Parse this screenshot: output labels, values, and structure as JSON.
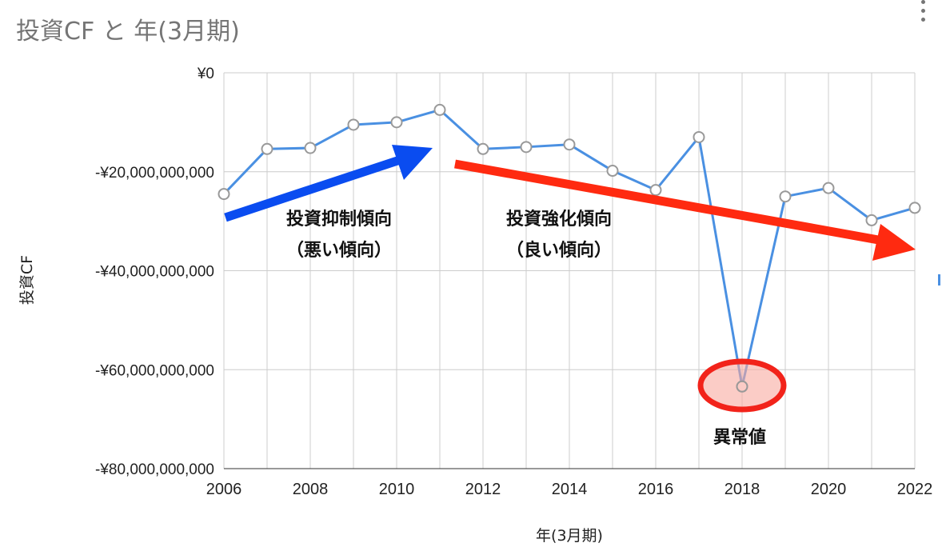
{
  "chart_data": {
    "type": "line",
    "title": "投資CF と 年(3月期)",
    "xlabel": "年(3月期)",
    "ylabel": "投資CF",
    "xlim": [
      2006,
      2022
    ],
    "ylim": [
      -80000000000,
      0
    ],
    "x_ticks": [
      "2006",
      "2008",
      "2010",
      "2012",
      "2014",
      "2016",
      "2018",
      "2020",
      "2022"
    ],
    "y_ticks": [
      "¥0",
      "-¥20,000,000,000",
      "-¥40,000,000,000",
      "-¥60,000,000,000",
      "-¥80,000,000,000"
    ],
    "grid": true,
    "series": [
      {
        "color": "#4a90e2",
        "points": [
          {
            "x": 2006,
            "y": -24500000000
          },
          {
            "x": 2007,
            "y": -15400000000
          },
          {
            "x": 2008,
            "y": -15200000000
          },
          {
            "x": 2009,
            "y": -10500000000
          },
          {
            "x": 2010,
            "y": -10000000000
          },
          {
            "x": 2011,
            "y": -7500000000
          },
          {
            "x": 2012,
            "y": -15400000000
          },
          {
            "x": 2013,
            "y": -15000000000
          },
          {
            "x": 2014,
            "y": -14500000000
          },
          {
            "x": 2015,
            "y": -19800000000
          },
          {
            "x": 2016,
            "y": -23700000000
          },
          {
            "x": 2017,
            "y": -13000000000
          },
          {
            "x": 2018,
            "y": -63400000000
          },
          {
            "x": 2019,
            "y": -25000000000
          },
          {
            "x": 2020,
            "y": -23300000000
          },
          {
            "x": 2021,
            "y": -29800000000
          },
          {
            "x": 2022,
            "y": -27300000000
          }
        ]
      }
    ],
    "annotations": {
      "blue_arrow_text": [
        "投資抑制傾向",
        "（悪い傾向）"
      ],
      "red_arrow_text": [
        "投資強化傾向",
        "（良い傾向）"
      ],
      "outlier_text": "異常値",
      "blue_arrow_color": "#0a4cf0",
      "red_arrow_color": "#ff2a10",
      "outlier_circle_color": "#f2231a"
    }
  }
}
